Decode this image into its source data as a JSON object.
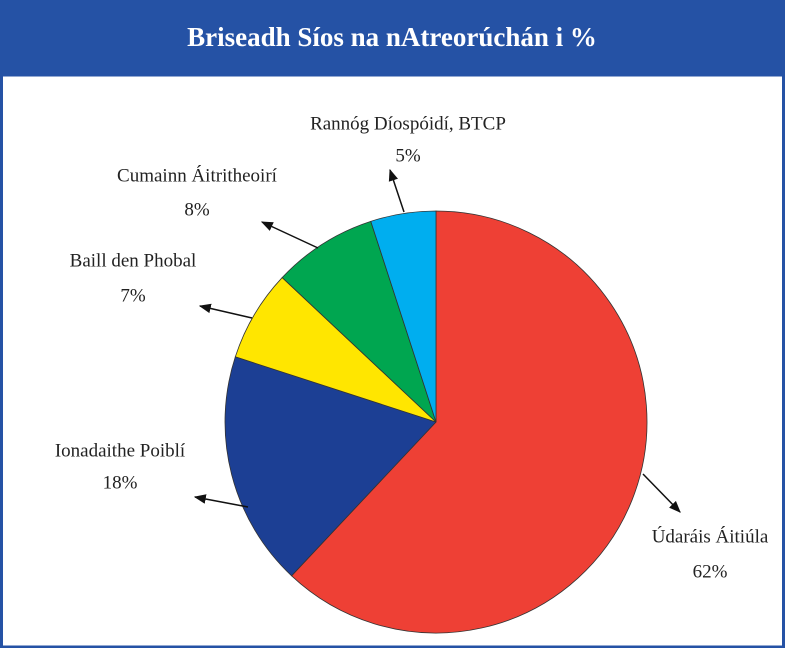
{
  "chart_data": {
    "type": "pie",
    "title": "Briseadh Síos na nAtreorúchán i %",
    "categories": [
      "Údaráis Áitiúla",
      "Ionadaithe Poiblí",
      "Baill den Phobal",
      "Cumainn Áitritheoirí",
      "Rannóg Díospóidí, BTCP"
    ],
    "values": [
      62,
      18,
      7,
      8,
      5
    ],
    "value_labels": [
      "62%",
      "18%",
      "7%",
      "8%",
      "5%"
    ],
    "colors": [
      "#ee4035",
      "#1c3f94",
      "#ffe600",
      "#00a650",
      "#00aeef"
    ]
  }
}
